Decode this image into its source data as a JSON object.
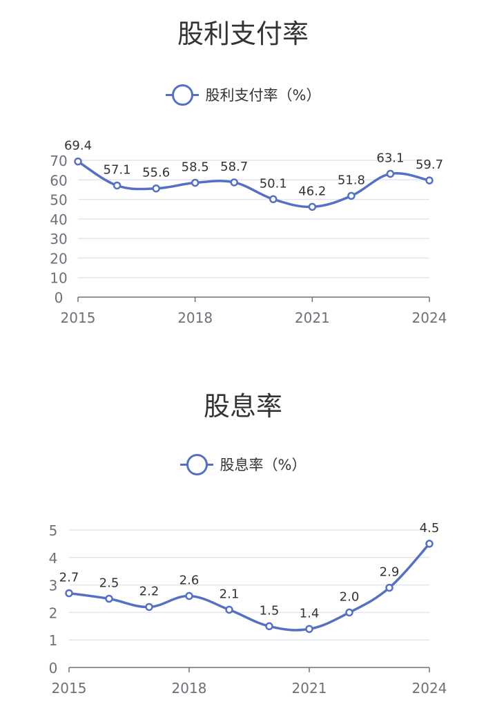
{
  "chart_data": [
    {
      "type": "line",
      "title": "股利支付率",
      "x": [
        2015,
        2016,
        2017,
        2018,
        2019,
        2020,
        2021,
        2022,
        2023,
        2024
      ],
      "x_tick_labels": [
        "2015",
        "2018",
        "2021",
        "2024"
      ],
      "series": [
        {
          "name": "股利支付率（%）",
          "values": [
            69.4,
            57.1,
            55.6,
            58.5,
            58.7,
            50.1,
            46.2,
            51.8,
            63.1,
            59.7
          ]
        }
      ],
      "data_labels": [
        "69.4",
        "57.1",
        "55.6",
        "58.5",
        "58.7",
        "50.1",
        "46.2",
        "51.8",
        "63.1",
        "59.7"
      ],
      "y_ticks": [
        "0",
        "10",
        "20",
        "30",
        "40",
        "50",
        "60",
        "70"
      ],
      "ylim": [
        0,
        70
      ],
      "smooth": true,
      "grid": true,
      "legend_position": "top-center",
      "color": "#5470c6"
    },
    {
      "type": "line",
      "title": "股息率",
      "x": [
        2015,
        2016,
        2017,
        2018,
        2019,
        2020,
        2021,
        2022,
        2023,
        2024
      ],
      "x_tick_labels": [
        "2015",
        "2018",
        "2021",
        "2024"
      ],
      "series": [
        {
          "name": "股息率（%）",
          "values": [
            2.7,
            2.5,
            2.2,
            2.6,
            2.1,
            1.5,
            1.4,
            2.0,
            2.9,
            4.5
          ]
        }
      ],
      "data_labels": [
        "2.7",
        "2.5",
        "2.2",
        "2.6",
        "2.1",
        "1.5",
        "1.4",
        "2.0",
        "2.9",
        "4.5"
      ],
      "y_ticks": [
        "0",
        "1",
        "2",
        "3",
        "4",
        "5"
      ],
      "ylim": [
        0,
        5
      ],
      "smooth": true,
      "grid": true,
      "legend_position": "top-center",
      "color": "#5470c6"
    }
  ]
}
